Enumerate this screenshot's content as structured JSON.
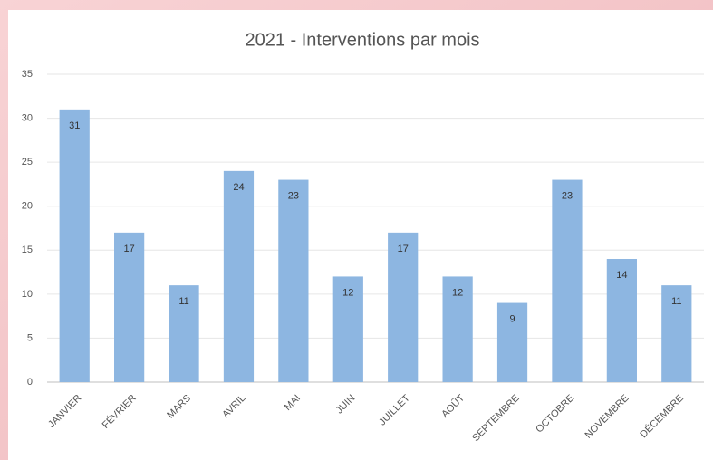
{
  "chart_data": {
    "type": "bar",
    "title": "2021 - Interventions par mois",
    "categories": [
      "JANVIER",
      "FÉVRIER",
      "MARS",
      "AVRIL",
      "MAI",
      "JUIN",
      "JUILLET",
      "AOÛT",
      "SEPTEMBRE",
      "OCTOBRE",
      "NOVEMBRE",
      "DÉCEMBRE"
    ],
    "values": [
      31,
      17,
      11,
      24,
      23,
      12,
      17,
      12,
      9,
      23,
      14,
      11
    ],
    "color": "#8db6e1",
    "ylim": [
      0,
      35
    ],
    "yticks": [
      0,
      5,
      10,
      15,
      20,
      25,
      30,
      35
    ],
    "grid": true
  }
}
